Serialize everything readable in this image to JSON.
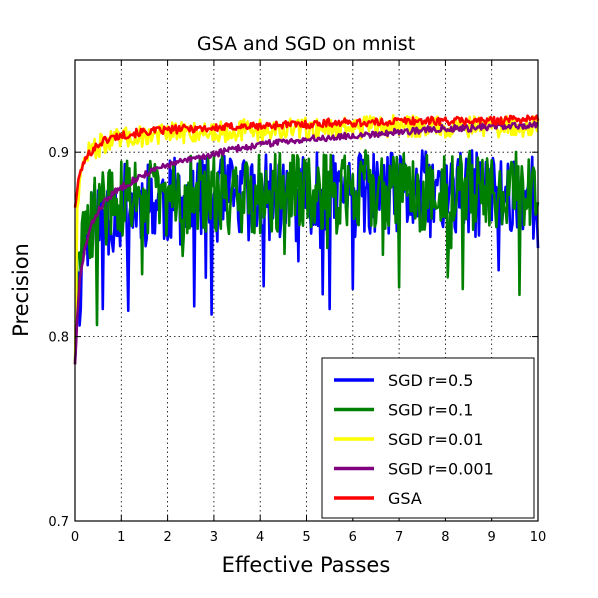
{
  "chart_data": {
    "type": "line",
    "title": "GSA and SGD on mnist",
    "xlabel": "Effective Passes",
    "ylabel": "Precision",
    "xlim": [
      0,
      10
    ],
    "ylim": [
      0.7,
      0.95
    ],
    "xticks": [
      0,
      1,
      2,
      3,
      4,
      5,
      6,
      7,
      8,
      9,
      10
    ],
    "xtick_labels": [
      "0",
      "1",
      "2",
      "3",
      "4",
      "5",
      "6",
      "7",
      "8",
      "9",
      "10"
    ],
    "yticks": [
      0.7,
      0.8,
      0.9
    ],
    "ytick_labels": [
      "0.7",
      "0.8",
      "0.9"
    ],
    "grid": true,
    "legend_position": "lower-right",
    "x": [
      0,
      0.05,
      0.1,
      0.2,
      0.3,
      0.4,
      0.5,
      0.6,
      0.8,
      1,
      1.2,
      1.5,
      2,
      2.5,
      3,
      3.5,
      4,
      4.5,
      5,
      5.5,
      6,
      6.5,
      7,
      7.5,
      8,
      8.5,
      9,
      9.5,
      10
    ],
    "series": [
      {
        "name": "SGD r=0.5",
        "color": "#0000ff",
        "values": [
          0.785,
          0.835,
          0.82,
          0.855,
          0.85,
          0.86,
          0.862,
          0.865,
          0.868,
          0.87,
          0.872,
          0.873,
          0.873,
          0.874,
          0.874,
          0.875,
          0.875,
          0.875,
          0.876,
          0.876,
          0.876,
          0.876,
          0.876,
          0.877,
          0.877,
          0.877,
          0.877,
          0.877,
          0.877
        ],
        "min_dips": [
          [
            0.6,
            0.815
          ],
          [
            1.15,
            0.814
          ],
          [
            2.95,
            0.812
          ],
          [
            5.35,
            0.823
          ],
          [
            5.5,
            0.815
          ],
          [
            9.15,
            0.836
          ],
          [
            10,
            0.848
          ]
        ]
      },
      {
        "name": "SGD r=0.1",
        "color": "#008000",
        "values": [
          0.785,
          0.84,
          0.835,
          0.86,
          0.86,
          0.865,
          0.868,
          0.87,
          0.872,
          0.874,
          0.875,
          0.876,
          0.876,
          0.877,
          0.877,
          0.878,
          0.878,
          0.878,
          0.878,
          0.879,
          0.879,
          0.879,
          0.879,
          0.879,
          0.879,
          0.879,
          0.879,
          0.879,
          0.879
        ]
      },
      {
        "name": "SGD r=0.01",
        "color": "#ffff00",
        "values": [
          0.785,
          0.87,
          0.885,
          0.895,
          0.9,
          0.902,
          0.903,
          0.905,
          0.906,
          0.907,
          0.908,
          0.909,
          0.91,
          0.911,
          0.911,
          0.912,
          0.912,
          0.912,
          0.913,
          0.913,
          0.913,
          0.914,
          0.914,
          0.914,
          0.914,
          0.914,
          0.914,
          0.914,
          0.914
        ]
      },
      {
        "name": "SGD r=0.001",
        "color": "#800080",
        "values": [
          0.785,
          0.81,
          0.83,
          0.846,
          0.856,
          0.863,
          0.868,
          0.872,
          0.877,
          0.881,
          0.884,
          0.888,
          0.893,
          0.896,
          0.899,
          0.902,
          0.904,
          0.906,
          0.907,
          0.908,
          0.909,
          0.91,
          0.911,
          0.912,
          0.913,
          0.913,
          0.914,
          0.914,
          0.915
        ]
      },
      {
        "name": "GSA",
        "color": "#ff0000",
        "values": [
          0.87,
          0.88,
          0.888,
          0.895,
          0.899,
          0.902,
          0.904,
          0.906,
          0.908,
          0.909,
          0.91,
          0.911,
          0.912,
          0.913,
          0.913,
          0.914,
          0.914,
          0.915,
          0.915,
          0.916,
          0.916,
          0.916,
          0.917,
          0.917,
          0.917,
          0.917,
          0.917,
          0.918,
          0.918
        ]
      }
    ]
  }
}
